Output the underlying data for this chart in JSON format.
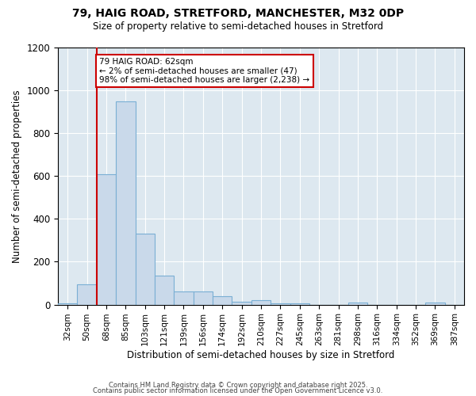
{
  "title1": "79, HAIG ROAD, STRETFORD, MANCHESTER, M32 0DP",
  "title2": "Size of property relative to semi-detached houses in Stretford",
  "xlabel": "Distribution of semi-detached houses by size in Stretford",
  "ylabel": "Number of semi-detached properties",
  "bin_labels": [
    "32sqm",
    "50sqm",
    "68sqm",
    "85sqm",
    "103sqm",
    "121sqm",
    "139sqm",
    "156sqm",
    "174sqm",
    "192sqm",
    "210sqm",
    "227sqm",
    "245sqm",
    "263sqm",
    "281sqm",
    "298sqm",
    "316sqm",
    "334sqm",
    "352sqm",
    "369sqm",
    "387sqm"
  ],
  "bar_values": [
    5,
    95,
    610,
    950,
    330,
    135,
    60,
    60,
    40,
    15,
    20,
    5,
    5,
    0,
    0,
    10,
    0,
    0,
    0,
    10,
    0
  ],
  "bar_color": "#c9d9ea",
  "bar_edge_color": "#7aafd4",
  "annotation_text": "79 HAIG ROAD: 62sqm\n← 2% of semi-detached houses are smaller (47)\n98% of semi-detached houses are larger (2,238) →",
  "annotation_box_color": "#ffffff",
  "annotation_box_edge": "#cc0000",
  "vline_color": "#cc0000",
  "vline_x_index": 2,
  "ylim": [
    0,
    1200
  ],
  "yticks": [
    0,
    200,
    400,
    600,
    800,
    1000,
    1200
  ],
  "bg_color": "#ffffff",
  "plot_bg_color": "#dde8f0",
  "footer1": "Contains HM Land Registry data © Crown copyright and database right 2025.",
  "footer2": "Contains public sector information licensed under the Open Government Licence v3.0."
}
